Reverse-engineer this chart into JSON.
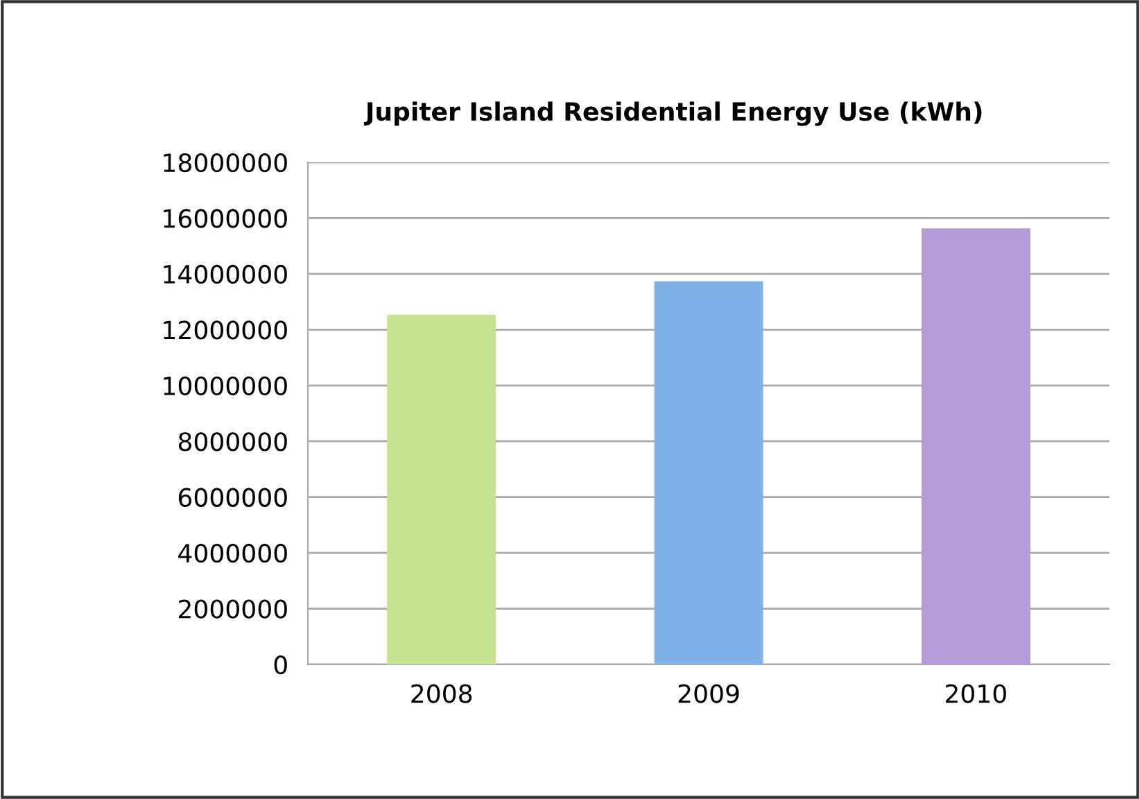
{
  "chart_data": {
    "type": "bar",
    "title": "Jupiter Island Residential Energy Use (kWh)",
    "categories": [
      "2008",
      "2009",
      "2010"
    ],
    "values": [
      12500000,
      13700000,
      15600000
    ],
    "colors": [
      "#c6e48e",
      "#80b2ea",
      "#b59cd9"
    ],
    "ylim": [
      0,
      18000000
    ],
    "yticks": [
      0,
      2000000,
      4000000,
      6000000,
      8000000,
      10000000,
      12000000,
      14000000,
      16000000,
      18000000
    ],
    "grid": "y",
    "legend": false
  }
}
